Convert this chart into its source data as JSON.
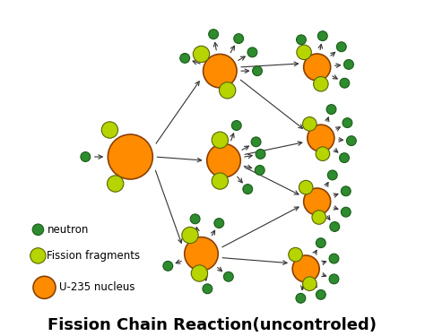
{
  "title": "Fission Chain Reaction(uncontroled)",
  "title_fontsize": 13,
  "background_color": "#ffffff",
  "neutron_color": "#2e8b2e",
  "neutron_edge_color": "#1a5c1a",
  "fragment_color": "#b5d400",
  "fragment_edge_color": "#5a6600",
  "nucleus_color": "#ff8c00",
  "nucleus_edge_color": "#8b4000",
  "legend_neutron_label": "neutron",
  "legend_fragment_label": "Fission fragments",
  "legend_nucleus_label": "U-235 nucleus",
  "xmin": 0,
  "xmax": 10,
  "ymin": 0,
  "ymax": 9
}
